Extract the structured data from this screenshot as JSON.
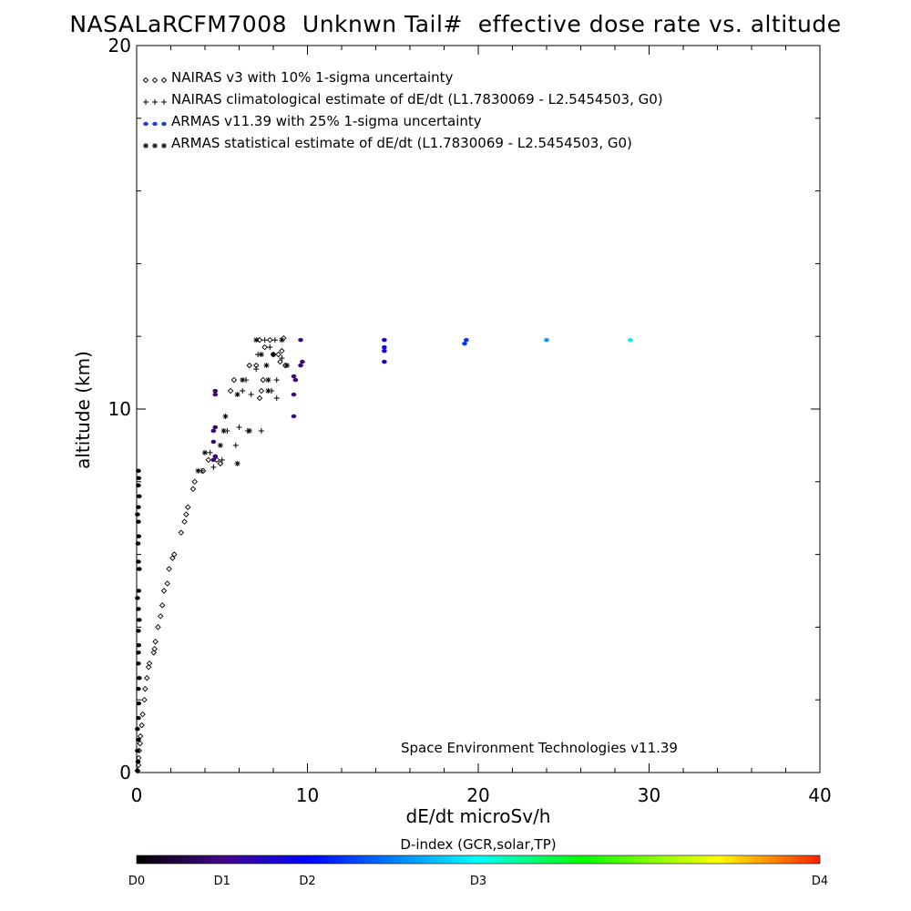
{
  "chart_data": {
    "type": "scatter",
    "title": "NASALaRCFM7008  Unknwn Tail#  effective dose rate vs. altitude",
    "xlabel": "dE/dt microSv/h",
    "ylabel": "altitude (km)",
    "xlim": [
      0,
      40
    ],
    "ylim": [
      0,
      20
    ],
    "x_ticks": [
      "0",
      "10",
      "20",
      "30",
      "40"
    ],
    "y_ticks": [
      "0",
      "10",
      "20"
    ],
    "grid": false,
    "legend_position": "top-left",
    "legend": [
      "NAIRAS v3 with 10% 1-sigma uncertainty",
      "NAIRAS climatological estimate of dE/dt (L1.7830069 - L2.5454503, G0)",
      "ARMAS v11.39 with 25% 1-sigma uncertainty",
      "ARMAS statistical estimate of dE/dt (L1.7830069 - L2.5454503, G0)"
    ],
    "annotation": "Space Environment Technologies v11.39",
    "colorbar": {
      "label": "D-index (GCR,solar,TP)",
      "ticks": [
        "D0",
        "D1",
        "D2",
        "D3",
        "D4"
      ],
      "tick_positions": [
        0,
        0.125,
        0.25,
        0.5,
        1.0
      ]
    },
    "series": [
      {
        "name": "NAIRAS v3 with 10% 1-sigma uncertainty",
        "marker": "diamond",
        "color": "#000000",
        "points": [
          [
            0.05,
            0.05
          ],
          [
            0.1,
            0.2
          ],
          [
            0.12,
            0.4
          ],
          [
            0.15,
            0.6
          ],
          [
            0.2,
            0.8
          ],
          [
            0.22,
            1.0
          ],
          [
            0.3,
            1.3
          ],
          [
            0.35,
            1.6
          ],
          [
            0.45,
            2.0
          ],
          [
            0.5,
            2.3
          ],
          [
            0.6,
            2.6
          ],
          [
            0.7,
            2.9
          ],
          [
            0.75,
            3.0
          ],
          [
            1.0,
            3.3
          ],
          [
            1.05,
            3.4
          ],
          [
            1.1,
            3.6
          ],
          [
            1.25,
            4.0
          ],
          [
            1.4,
            4.3
          ],
          [
            1.5,
            4.6
          ],
          [
            1.6,
            5.0
          ],
          [
            1.8,
            5.2
          ],
          [
            1.9,
            5.6
          ],
          [
            2.1,
            5.9
          ],
          [
            2.2,
            6.0
          ],
          [
            2.6,
            6.6
          ],
          [
            2.8,
            6.9
          ],
          [
            2.9,
            7.1
          ],
          [
            3.0,
            7.3
          ],
          [
            3.3,
            7.8
          ],
          [
            3.4,
            8.0
          ],
          [
            3.9,
            8.3
          ],
          [
            4.2,
            8.6
          ],
          [
            4.7,
            8.6
          ],
          [
            4.9,
            8.5
          ],
          [
            5.5,
            10.5
          ],
          [
            5.7,
            10.8
          ],
          [
            6.6,
            11.2
          ],
          [
            7.0,
            11.2
          ],
          [
            7.2,
            10.3
          ],
          [
            7.3,
            10.5
          ],
          [
            7.4,
            10.8
          ],
          [
            7.5,
            11.7
          ],
          [
            8.0,
            11.5
          ],
          [
            8.3,
            11.5
          ],
          [
            8.5,
            11.6
          ],
          [
            8.4,
            11.3
          ],
          [
            8.7,
            11.2
          ],
          [
            7.2,
            11.9
          ],
          [
            7.8,
            11.9
          ],
          [
            8.6,
            11.95
          ]
        ]
      },
      {
        "name": "NAIRAS climatological estimate of dE/dt (L1.7830069 - L2.5454503, G0)",
        "marker": "plus",
        "color": "#000000",
        "points": [
          [
            3.8,
            8.3
          ],
          [
            4.3,
            8.8
          ],
          [
            4.5,
            8.4
          ],
          [
            5.0,
            8.6
          ],
          [
            5.3,
            9.4
          ],
          [
            5.8,
            9.0
          ],
          [
            6.0,
            9.5
          ],
          [
            6.2,
            10.5
          ],
          [
            6.4,
            10.8
          ],
          [
            6.7,
            10.4
          ],
          [
            7.3,
            9.4
          ],
          [
            6.5,
            9.4
          ],
          [
            7.0,
            11.1
          ],
          [
            7.1,
            11.5
          ],
          [
            7.8,
            11.7
          ],
          [
            8.2,
            10.3
          ],
          [
            8.2,
            10.8
          ],
          [
            8.5,
            11.4
          ],
          [
            7.5,
            11.9
          ],
          [
            8.1,
            11.9
          ],
          [
            7.9,
            10.5
          ]
        ]
      },
      {
        "name": "ARMAS v11.39 with 25% 1-sigma uncertainty",
        "marker": "dot",
        "points": [
          [
            0.05,
            0.05
          ],
          [
            0.08,
            0.3
          ],
          [
            0.05,
            0.6
          ],
          [
            0.1,
            0.9
          ],
          [
            0.05,
            1.2
          ],
          [
            0.1,
            1.5
          ],
          [
            0.12,
            1.9
          ],
          [
            0.1,
            2.3
          ],
          [
            0.15,
            2.6
          ],
          [
            0.1,
            3.0
          ],
          [
            0.1,
            3.3
          ],
          [
            0.12,
            3.5
          ],
          [
            0.1,
            3.9
          ],
          [
            0.15,
            4.2
          ],
          [
            0.1,
            4.5
          ],
          [
            0.05,
            4.8
          ],
          [
            0.12,
            5.0
          ],
          [
            0.15,
            5.6
          ],
          [
            0.1,
            5.8
          ],
          [
            0.08,
            6.3
          ],
          [
            0.12,
            6.5
          ],
          [
            0.1,
            6.9
          ],
          [
            0.05,
            7.1
          ],
          [
            0.1,
            7.3
          ],
          [
            0.15,
            7.6
          ],
          [
            0.1,
            7.9
          ],
          [
            0.12,
            8.1
          ],
          [
            0.1,
            8.3
          ],
          [
            4.5,
            8.6
          ],
          [
            4.6,
            8.7
          ],
          [
            4.5,
            9.1
          ],
          [
            4.6,
            9.5
          ],
          [
            4.5,
            9.4
          ],
          [
            4.6,
            10.4
          ],
          [
            4.6,
            10.5
          ],
          [
            9.2,
            9.8
          ],
          [
            9.2,
            10.4
          ],
          [
            9.3,
            10.8
          ],
          [
            9.2,
            10.9
          ],
          [
            9.6,
            11.2
          ],
          [
            9.7,
            11.3
          ],
          [
            9.6,
            11.9
          ],
          [
            14.5,
            11.3
          ],
          [
            14.5,
            11.6
          ],
          [
            14.5,
            11.7
          ],
          [
            14.5,
            11.9
          ],
          [
            19.2,
            11.8
          ],
          [
            19.3,
            11.9
          ],
          [
            24.0,
            11.9
          ],
          [
            28.9,
            11.9
          ]
        ],
        "d_index": [
          0,
          0,
          0,
          0,
          0,
          0,
          0,
          0,
          0,
          0,
          0,
          0,
          0,
          0,
          0,
          0,
          0,
          0,
          0,
          0,
          0,
          0,
          0,
          0,
          0,
          0,
          0,
          0,
          0.1,
          0.1,
          0.1,
          0.1,
          0.1,
          0.1,
          0.1,
          0.11,
          0.11,
          0.11,
          0.11,
          0.11,
          0.11,
          0.11,
          0.22,
          0.22,
          0.22,
          0.22,
          0.3,
          0.3,
          0.4,
          0.48
        ]
      },
      {
        "name": "ARMAS statistical estimate of dE/dt (L1.7830069 - L2.5454503, G0)",
        "marker": "asterisk",
        "color": "#000000",
        "points": [
          [
            3.6,
            8.3
          ],
          [
            4.0,
            8.8
          ],
          [
            5.9,
            8.5
          ],
          [
            4.9,
            9.0
          ],
          [
            5.1,
            9.4
          ],
          [
            5.2,
            9.8
          ],
          [
            6.6,
            9.4
          ],
          [
            5.9,
            10.4
          ],
          [
            6.2,
            10.8
          ],
          [
            7.7,
            10.5
          ],
          [
            7.7,
            10.8
          ],
          [
            7.6,
            11.2
          ],
          [
            8.0,
            11.5
          ],
          [
            8.8,
            11.2
          ],
          [
            7.3,
            11.5
          ],
          [
            8.5,
            11.9
          ],
          [
            7.0,
            11.9
          ]
        ]
      }
    ]
  }
}
